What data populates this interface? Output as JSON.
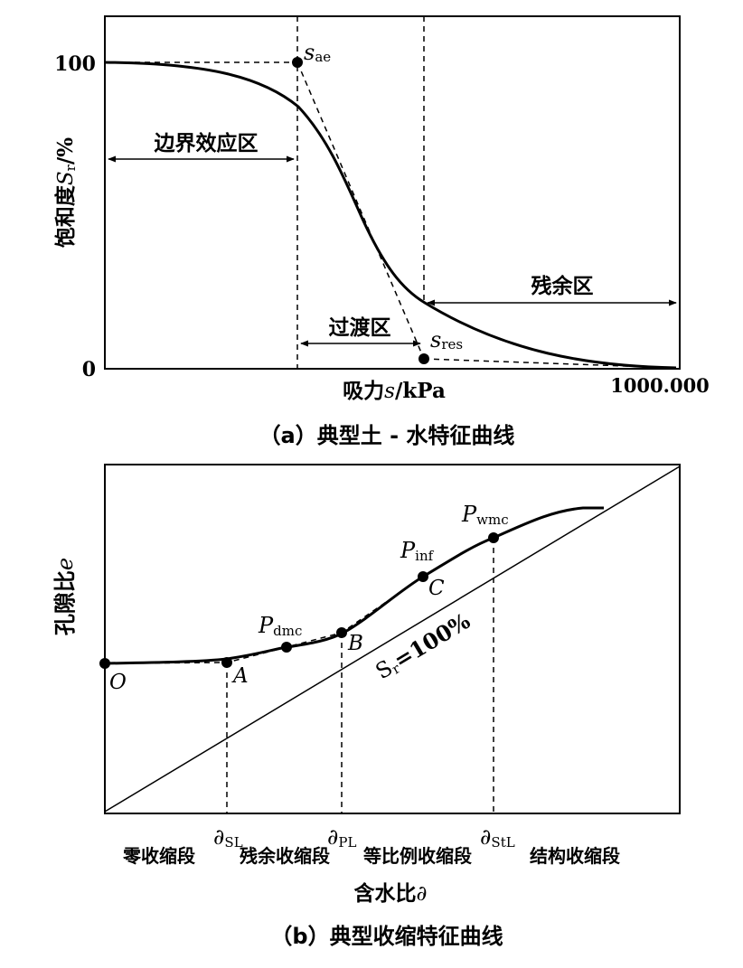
{
  "panel_a": {
    "caption": "（a）典型土 - 水特征曲线",
    "ylabel": "饱和度",
    "ylabel_symbol": "S",
    "ylabel_sub": "r",
    "ylabel_unit": "/%",
    "xlabel": "吸力",
    "xlabel_symbol": "s",
    "xlabel_unit": "/kPa",
    "y_tick_top": "100",
    "y_tick_bottom": "0",
    "x_tick_right": "1000.000",
    "zone_boundary": "边界效应区",
    "zone_transition": "过渡区",
    "zone_residual": "残余区",
    "point_ae_symbol": "s",
    "point_ae_sub": "ae",
    "point_res_symbol": "s",
    "point_res_sub": "res"
  },
  "panel_b": {
    "caption": "（b）典型收缩特征曲线",
    "ylabel": "孔隙比",
    "ylabel_symbol": "e",
    "xlabel": "含水比",
    "xlabel_symbol": "∂",
    "line_symbol": "S",
    "line_sub": "r",
    "line_value": "=100%",
    "point_O": "O",
    "point_A": "A",
    "point_B": "B",
    "point_C": "C",
    "p_dmc_symbol": "P",
    "p_dmc_sub": "dmc",
    "p_inf_symbol": "P",
    "p_inf_sub": "inf",
    "p_wmc_symbol": "P",
    "p_wmc_sub": "wmc",
    "tick_SL_symbol": "∂",
    "tick_SL_sub": "SL",
    "tick_PL_symbol": "∂",
    "tick_PL_sub": "PL",
    "tick_StL_symbol": "∂",
    "tick_StL_sub": "StL",
    "stage_zero": "零收缩段",
    "stage_residual": "残余收缩段",
    "stage_proportional": "等比例收缩段",
    "stage_structural": "结构收缩段"
  }
}
